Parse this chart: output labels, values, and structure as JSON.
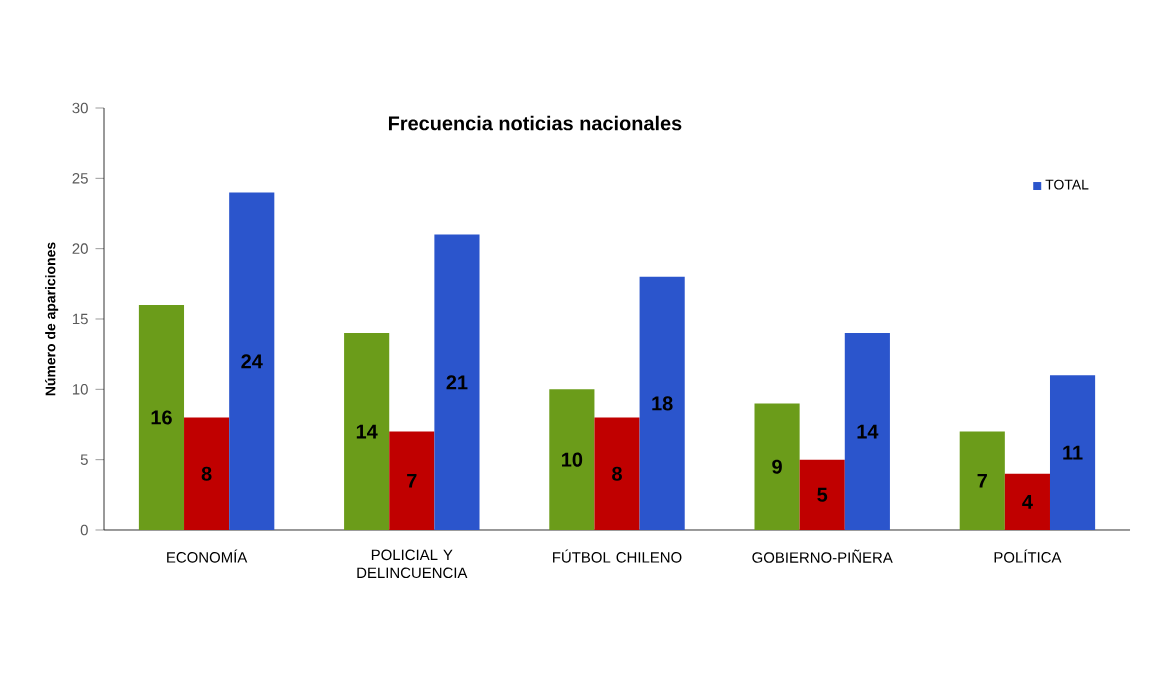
{
  "chart_data": {
    "type": "bar",
    "title": "Frecuencia noticias nacionales",
    "ylabel": "Número de apariciones",
    "categories": [
      "ECONOMÍA",
      "POLICIAL Y DELINCUENCIA",
      "FÚTBOL CHILENO",
      "GOBIERNO-PIÑERA",
      "POLÍTICA"
    ],
    "series": [
      {
        "color": "#6b9c1a",
        "values": [
          16,
          14,
          10,
          9,
          7
        ]
      },
      {
        "color": "#c00000",
        "values": [
          8,
          7,
          8,
          5,
          4
        ]
      },
      {
        "name": "TOTAL",
        "color": "#2b55cc",
        "values": [
          24,
          21,
          18,
          14,
          11
        ]
      }
    ],
    "ylim": [
      0,
      30
    ],
    "yticks": [
      0,
      5,
      10,
      15,
      20,
      25,
      30
    ],
    "data_labels": true,
    "legend": "top right",
    "grid": false
  }
}
